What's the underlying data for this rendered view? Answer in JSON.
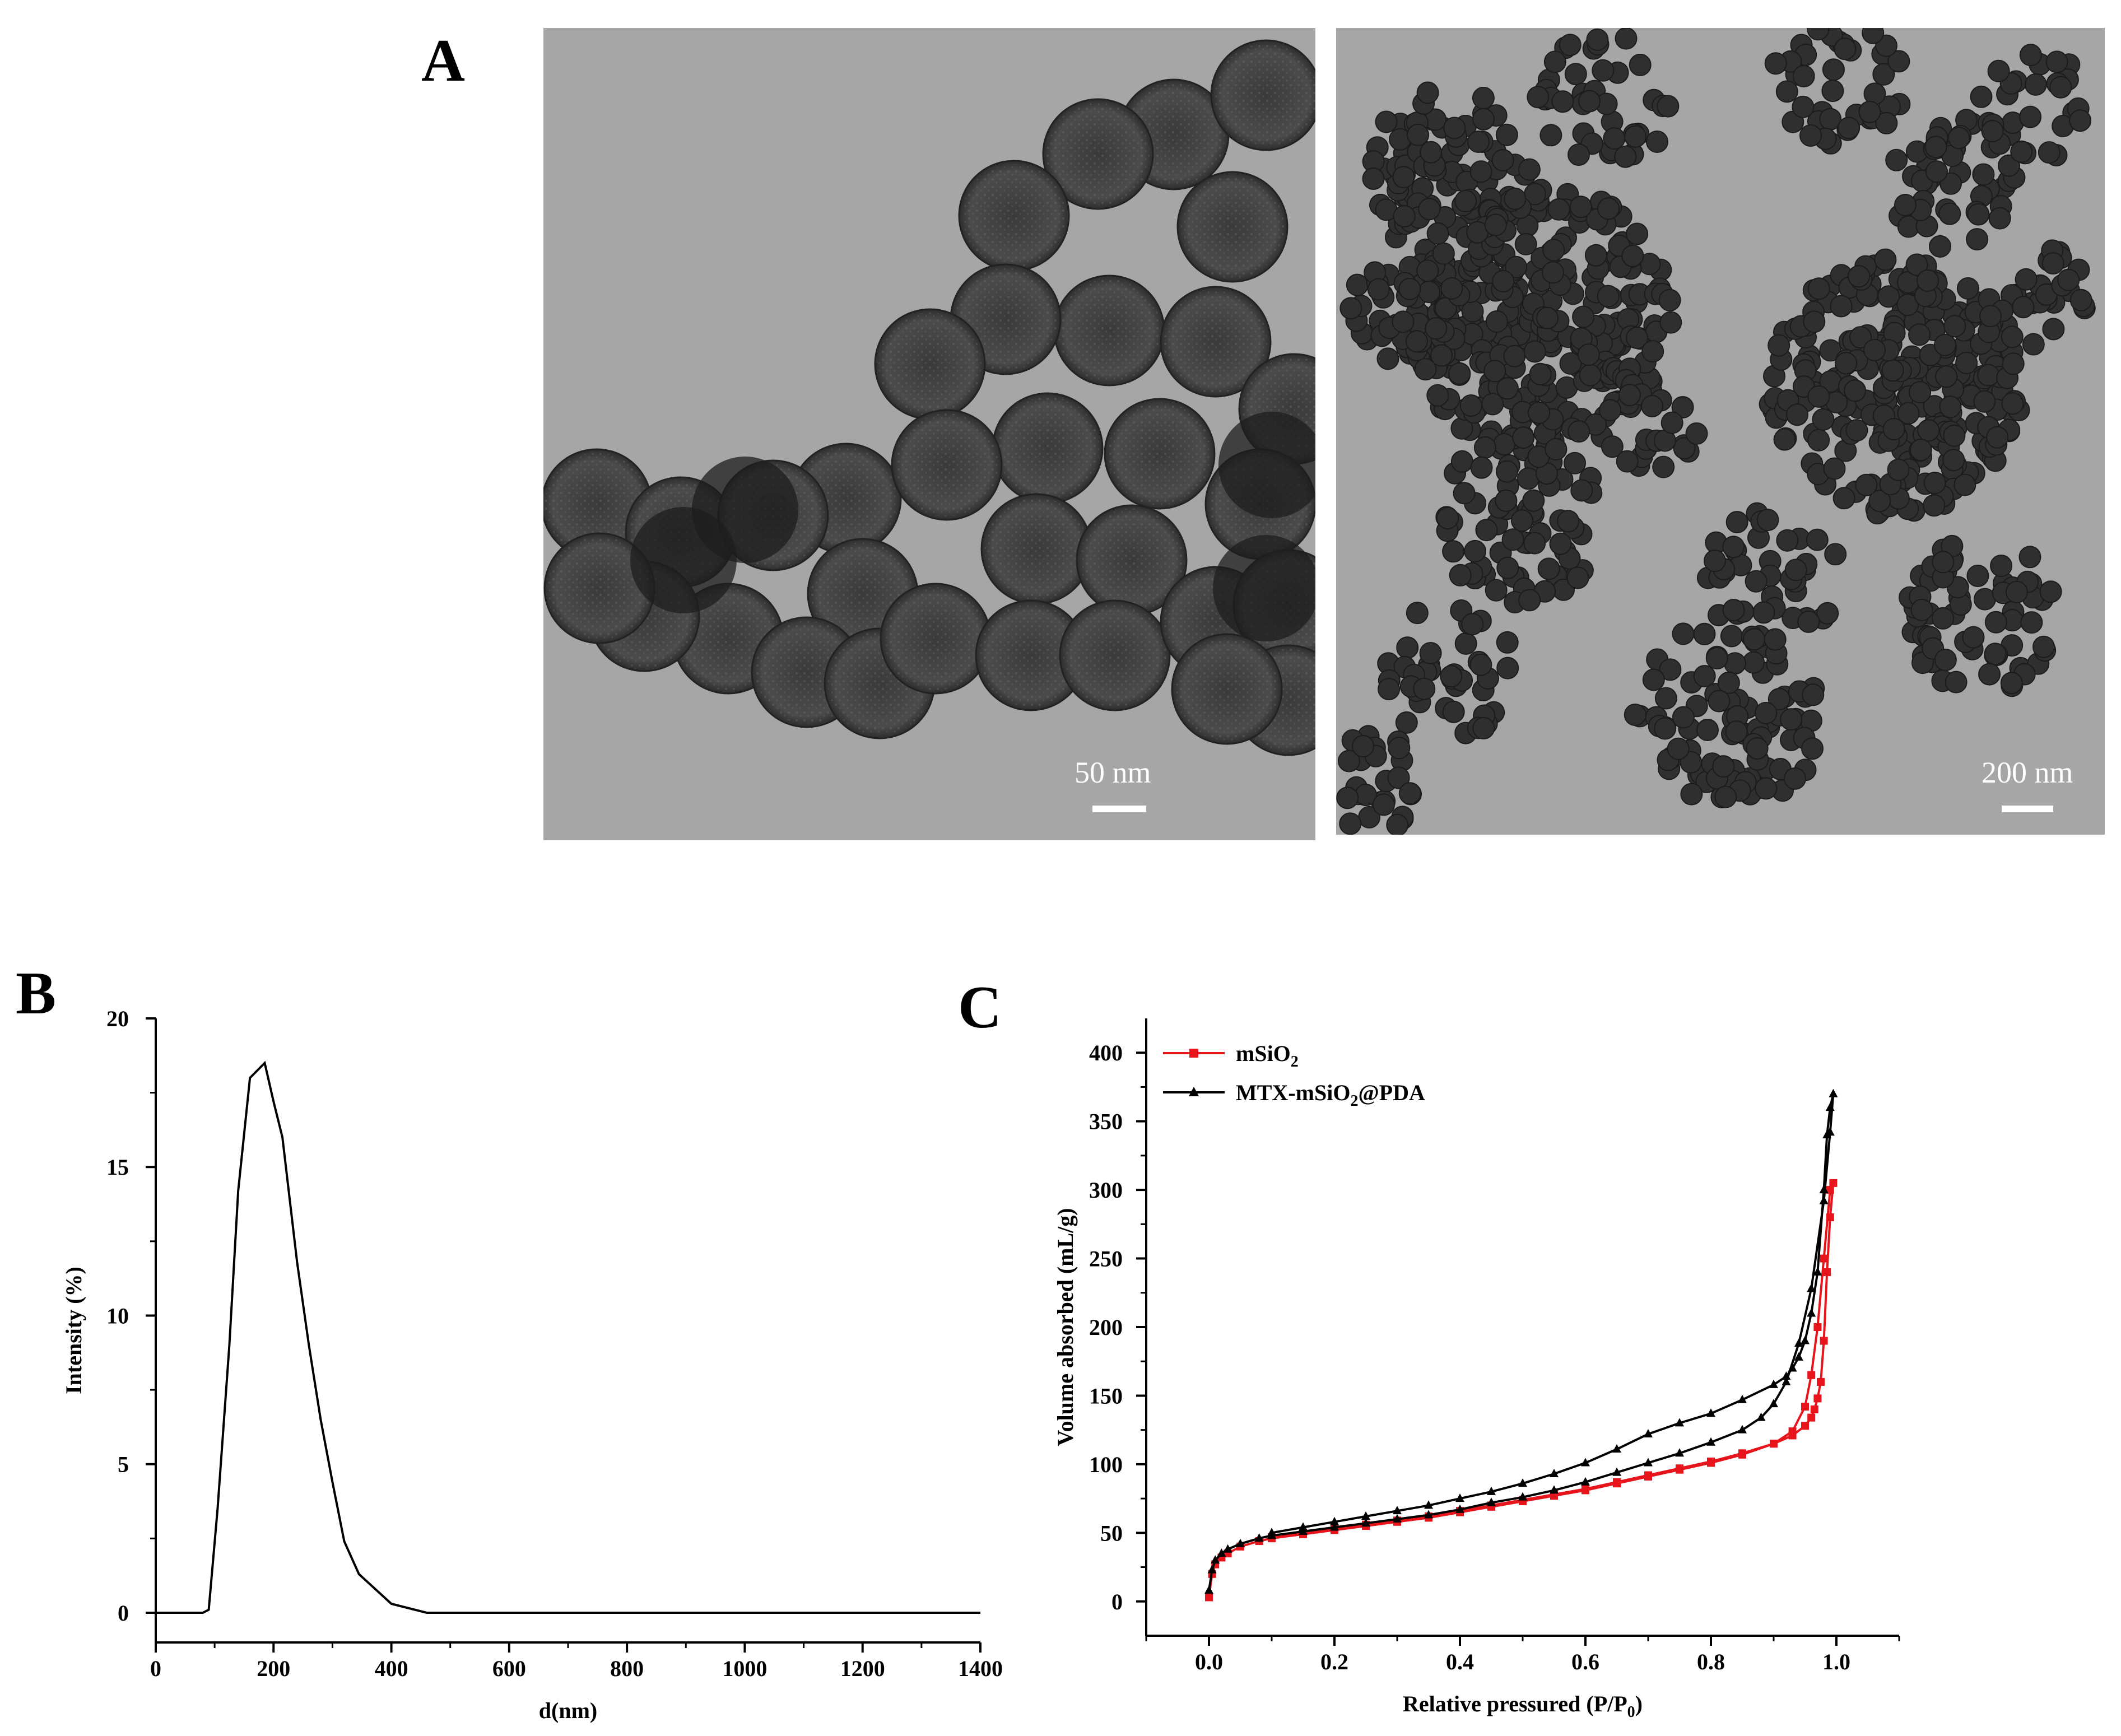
{
  "panel_a": {
    "letter": "A",
    "left_image": {
      "scale_label": "50 nm"
    },
    "right_image": {
      "scale_label": "200 nm"
    }
  },
  "panel_b": {
    "letter": "B"
  },
  "panel_c": {
    "letter": "C"
  },
  "chart_data": [
    {
      "type": "line",
      "panel": "B",
      "xlabel": "d(nm)",
      "ylabel": "Intensity (%)",
      "xlim": [
        0,
        1400
      ],
      "ylim": [
        -1,
        20
      ],
      "xticks": [
        0,
        200,
        400,
        600,
        800,
        1000,
        1200,
        1400
      ],
      "yticks": [
        0,
        5,
        10,
        15,
        20
      ],
      "grid": false,
      "series": [
        {
          "x": [
            0,
            80,
            90,
            105,
            125,
            140,
            160,
            185,
            200,
            215,
            240,
            260,
            280,
            300,
            320,
            345,
            400,
            460,
            600,
            1000,
            1400
          ],
          "y": [
            0,
            0,
            0.1,
            3.5,
            9,
            14.2,
            18,
            18.5,
            17.2,
            16,
            11.8,
            9,
            6.5,
            4.4,
            2.4,
            1.3,
            0.3,
            0,
            0,
            0,
            0
          ]
        }
      ]
    },
    {
      "type": "line",
      "panel": "C",
      "xlabel": "Relative pressured (P/P0)",
      "ylabel": "Volume absorbed (mL/g)",
      "xlim": [
        -0.1,
        1.1
      ],
      "ylim": [
        -25,
        425
      ],
      "xticks": [
        0.0,
        0.2,
        0.4,
        0.6,
        0.8,
        1.0
      ],
      "yticks": [
        0,
        50,
        100,
        150,
        200,
        250,
        300,
        350,
        400
      ],
      "legend": "top-left",
      "grid": false,
      "series": [
        {
          "name": "mSiO2",
          "color": "#e8141b",
          "marker": "square",
          "x": [
            0.0,
            0.005,
            0.01,
            0.02,
            0.03,
            0.05,
            0.08,
            0.1,
            0.15,
            0.2,
            0.25,
            0.3,
            0.35,
            0.4,
            0.45,
            0.5,
            0.55,
            0.6,
            0.65,
            0.7,
            0.75,
            0.8,
            0.85,
            0.9,
            0.93,
            0.95,
            0.96,
            0.97,
            0.98,
            0.99,
            0.995,
            0.99,
            0.985,
            0.98,
            0.975,
            0.97,
            0.965,
            0.96,
            0.95,
            0.93,
            0.9,
            0.85,
            0.8,
            0.75,
            0.7,
            0.65,
            0.6,
            0.55,
            0.5,
            0.45,
            0.4,
            0.35,
            0.3,
            0.25,
            0.2,
            0.15,
            0.1
          ],
          "y": [
            3,
            20,
            27,
            32,
            35,
            40,
            44,
            46,
            49,
            52,
            55,
            58,
            61,
            65,
            69,
            73,
            77,
            81,
            86,
            91,
            96,
            101,
            107,
            115,
            124,
            142,
            165,
            200,
            250,
            300,
            305,
            280,
            240,
            190,
            160,
            148,
            140,
            134,
            128,
            121,
            115,
            108,
            102,
            97,
            92,
            87,
            82,
            78,
            74,
            70,
            66,
            62,
            59,
            56,
            53,
            50,
            47
          ]
        },
        {
          "name": "MTX-mSiO2@PDA",
          "color": "#000000",
          "marker": "triangle",
          "x": [
            0.0,
            0.005,
            0.01,
            0.02,
            0.03,
            0.05,
            0.08,
            0.1,
            0.15,
            0.2,
            0.25,
            0.3,
            0.35,
            0.4,
            0.45,
            0.5,
            0.55,
            0.6,
            0.65,
            0.7,
            0.75,
            0.8,
            0.85,
            0.88,
            0.9,
            0.92,
            0.94,
            0.96,
            0.98,
            0.99,
            0.995,
            0.99,
            0.985,
            0.98,
            0.97,
            0.96,
            0.95,
            0.94,
            0.93,
            0.92,
            0.9,
            0.85,
            0.8,
            0.75,
            0.7,
            0.65,
            0.6,
            0.55,
            0.5,
            0.45,
            0.4,
            0.35,
            0.3,
            0.25,
            0.2,
            0.15,
            0.1
          ],
          "y": [
            8,
            23,
            30,
            35,
            38,
            42,
            46,
            48,
            51,
            54,
            57,
            60,
            63,
            67,
            72,
            76,
            81,
            87,
            94,
            101,
            108,
            116,
            125,
            134,
            144,
            160,
            188,
            228,
            292,
            342,
            370,
            360,
            340,
            300,
            240,
            210,
            190,
            178,
            170,
            164,
            158,
            147,
            137,
            130,
            122,
            111,
            101,
            93,
            86,
            80,
            75,
            70,
            66,
            62,
            58,
            54,
            50
          ]
        }
      ]
    }
  ]
}
